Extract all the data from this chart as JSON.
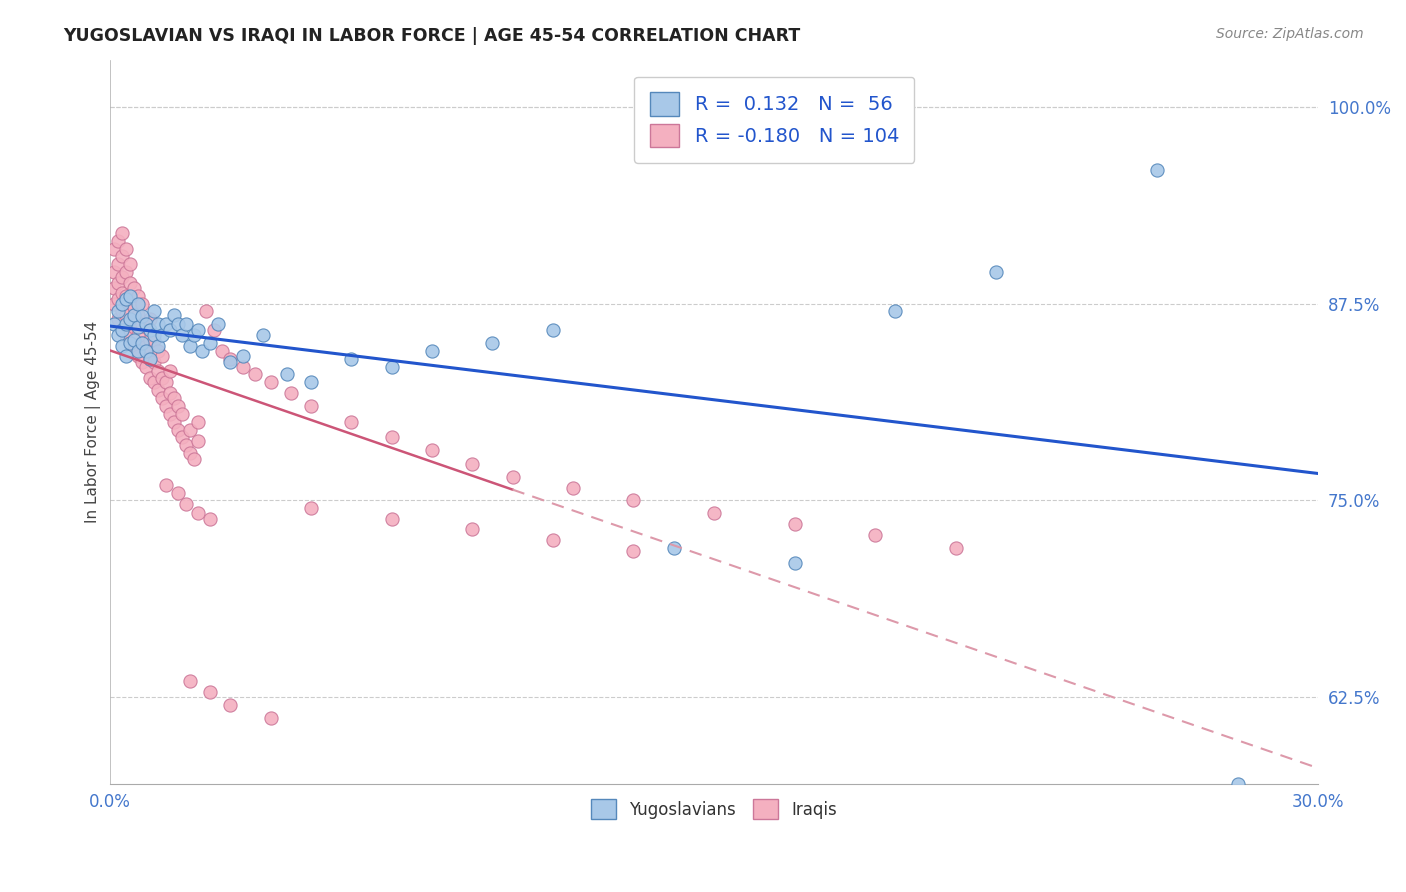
{
  "title": "YUGOSLAVIAN VS IRAQI IN LABOR FORCE | AGE 45-54 CORRELATION CHART",
  "source": "Source: ZipAtlas.com",
  "ylabel": "In Labor Force | Age 45-54",
  "xlim": [
    0.0,
    0.3
  ],
  "ylim": [
    0.57,
    1.03
  ],
  "xtick_labels": [
    "0.0%",
    "30.0%"
  ],
  "ytick_labels": [
    "62.5%",
    "75.0%",
    "87.5%",
    "100.0%"
  ],
  "ytick_values": [
    0.625,
    0.75,
    0.875,
    1.0
  ],
  "legend_blue_r": "0.132",
  "legend_blue_n": "56",
  "legend_pink_r": "-0.180",
  "legend_pink_n": "104",
  "blue_color": "#a8c8e8",
  "blue_edge_color": "#5588bb",
  "pink_color": "#f4b0c0",
  "pink_edge_color": "#cc7799",
  "trend_blue_color": "#2255cc",
  "trend_pink_solid_color": "#cc5577",
  "trend_pink_dash_color": "#dd99aa",
  "dot_size": 90,
  "background_color": "#ffffff",
  "grid_color": "#cccccc",
  "title_color": "#222222",
  "axis_label_color": "#4477cc",
  "blue_scatter_x": [
    0.001,
    0.002,
    0.002,
    0.003,
    0.003,
    0.003,
    0.004,
    0.004,
    0.004,
    0.005,
    0.005,
    0.005,
    0.006,
    0.006,
    0.007,
    0.007,
    0.007,
    0.008,
    0.008,
    0.009,
    0.009,
    0.01,
    0.01,
    0.011,
    0.011,
    0.012,
    0.012,
    0.013,
    0.014,
    0.015,
    0.016,
    0.017,
    0.018,
    0.019,
    0.02,
    0.021,
    0.022,
    0.023,
    0.025,
    0.027,
    0.03,
    0.033,
    0.038,
    0.044,
    0.05,
    0.06,
    0.07,
    0.08,
    0.095,
    0.11,
    0.14,
    0.17,
    0.195,
    0.22,
    0.26,
    0.28
  ],
  "blue_scatter_y": [
    0.862,
    0.855,
    0.87,
    0.848,
    0.858,
    0.875,
    0.842,
    0.862,
    0.878,
    0.85,
    0.865,
    0.88,
    0.852,
    0.868,
    0.845,
    0.86,
    0.875,
    0.85,
    0.867,
    0.845,
    0.862,
    0.84,
    0.858,
    0.855,
    0.87,
    0.848,
    0.862,
    0.855,
    0.862,
    0.858,
    0.868,
    0.862,
    0.855,
    0.862,
    0.848,
    0.855,
    0.858,
    0.845,
    0.85,
    0.862,
    0.838,
    0.842,
    0.855,
    0.83,
    0.825,
    0.84,
    0.835,
    0.845,
    0.85,
    0.858,
    0.72,
    0.71,
    0.87,
    0.895,
    0.96,
    0.57
  ],
  "pink_scatter_x": [
    0.001,
    0.001,
    0.001,
    0.001,
    0.002,
    0.002,
    0.002,
    0.002,
    0.002,
    0.003,
    0.003,
    0.003,
    0.003,
    0.003,
    0.003,
    0.004,
    0.004,
    0.004,
    0.004,
    0.004,
    0.005,
    0.005,
    0.005,
    0.005,
    0.005,
    0.006,
    0.006,
    0.006,
    0.006,
    0.007,
    0.007,
    0.007,
    0.007,
    0.008,
    0.008,
    0.008,
    0.008,
    0.009,
    0.009,
    0.009,
    0.01,
    0.01,
    0.01,
    0.01,
    0.011,
    0.011,
    0.011,
    0.012,
    0.012,
    0.012,
    0.013,
    0.013,
    0.013,
    0.014,
    0.014,
    0.015,
    0.015,
    0.015,
    0.016,
    0.016,
    0.017,
    0.017,
    0.018,
    0.018,
    0.019,
    0.02,
    0.02,
    0.021,
    0.022,
    0.022,
    0.024,
    0.026,
    0.028,
    0.03,
    0.033,
    0.036,
    0.04,
    0.045,
    0.05,
    0.06,
    0.07,
    0.08,
    0.09,
    0.1,
    0.115,
    0.13,
    0.15,
    0.17,
    0.19,
    0.21,
    0.014,
    0.017,
    0.019,
    0.022,
    0.025,
    0.05,
    0.07,
    0.09,
    0.11,
    0.13,
    0.02,
    0.025,
    0.03,
    0.04
  ],
  "pink_scatter_y": [
    0.875,
    0.885,
    0.895,
    0.91,
    0.865,
    0.878,
    0.888,
    0.9,
    0.915,
    0.858,
    0.87,
    0.882,
    0.892,
    0.905,
    0.92,
    0.855,
    0.868,
    0.88,
    0.895,
    0.91,
    0.85,
    0.863,
    0.876,
    0.888,
    0.9,
    0.848,
    0.86,
    0.873,
    0.885,
    0.842,
    0.855,
    0.868,
    0.88,
    0.838,
    0.85,
    0.862,
    0.875,
    0.835,
    0.848,
    0.86,
    0.828,
    0.84,
    0.852,
    0.865,
    0.825,
    0.838,
    0.852,
    0.82,
    0.832,
    0.845,
    0.815,
    0.828,
    0.842,
    0.81,
    0.825,
    0.805,
    0.818,
    0.832,
    0.8,
    0.815,
    0.795,
    0.81,
    0.79,
    0.805,
    0.785,
    0.78,
    0.795,
    0.776,
    0.788,
    0.8,
    0.87,
    0.858,
    0.845,
    0.84,
    0.835,
    0.83,
    0.825,
    0.818,
    0.81,
    0.8,
    0.79,
    0.782,
    0.773,
    0.765,
    0.758,
    0.75,
    0.742,
    0.735,
    0.728,
    0.72,
    0.76,
    0.755,
    0.748,
    0.742,
    0.738,
    0.745,
    0.738,
    0.732,
    0.725,
    0.718,
    0.635,
    0.628,
    0.62,
    0.612
  ],
  "figsize": [
    14.06,
    8.92
  ],
  "dpi": 100
}
